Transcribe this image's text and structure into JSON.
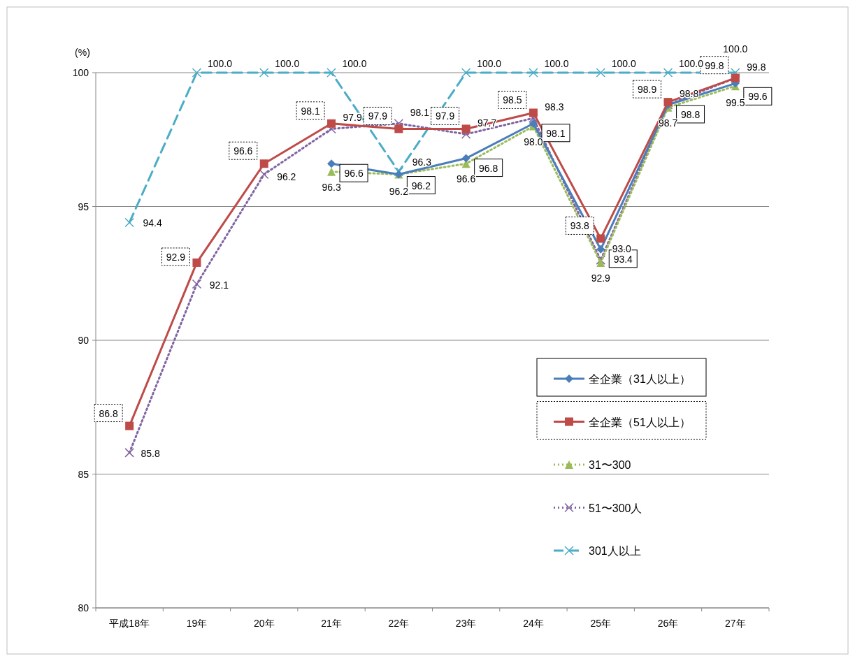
{
  "chart_data": {
    "type": "line",
    "ylabel": "(%)",
    "categories": [
      "平成18年",
      "19年",
      "20年",
      "21年",
      "22年",
      "23年",
      "24年",
      "25年",
      "26年",
      "27年"
    ],
    "ylim": [
      80,
      100
    ],
    "yticks": [
      80,
      85,
      90,
      95,
      100
    ],
    "grid": "y",
    "legend": "right",
    "series": [
      {
        "name": "全企業（31人以上）",
        "color": "#4a7ebb",
        "marker": "diamond",
        "line_style": "solid",
        "values": [
          null,
          null,
          null,
          96.6,
          96.2,
          96.8,
          98.1,
          93.4,
          98.8,
          99.6
        ],
        "value_labels": [
          null,
          null,
          null,
          "96.6",
          "96.2",
          "96.8",
          "98.1",
          "93.4",
          "98.8",
          "99.6"
        ]
      },
      {
        "name": "全企業（51人以上）",
        "color": "#be4b48",
        "marker": "square",
        "line_style": "solid",
        "values": [
          86.8,
          92.9,
          96.6,
          98.1,
          97.9,
          97.9,
          98.5,
          93.8,
          98.9,
          99.8
        ],
        "value_labels": [
          "86.8",
          "92.9",
          "96.6",
          "98.1",
          "97.9",
          "97.9",
          "98.5",
          "93.8",
          "98.9",
          "99.8"
        ]
      },
      {
        "name": "31〜300",
        "color": "#9bbb59",
        "marker": "triangle",
        "line_style": "dotted",
        "values": [
          null,
          null,
          null,
          96.3,
          96.2,
          96.6,
          98.0,
          92.9,
          98.7,
          99.5
        ],
        "value_labels": [
          null,
          null,
          null,
          "96.3",
          "96.2",
          "96.6",
          "98.0",
          "92.9",
          "98.7",
          "99.5"
        ]
      },
      {
        "name": "51〜300人",
        "color": "#8064a2",
        "marker": "cross",
        "line_style": "dotted",
        "values": [
          85.8,
          92.1,
          96.2,
          97.9,
          98.1,
          97.7,
          98.3,
          93.0,
          98.8,
          99.8
        ],
        "value_labels": [
          "85.8",
          "92.1",
          "96.2",
          "97.9",
          "98.1",
          "97.7",
          "98.3",
          "93.0",
          "98.8",
          "99.8"
        ]
      },
      {
        "name": "301人以上",
        "color": "#4bacc6",
        "marker": "cross",
        "line_style": "dashed",
        "values": [
          94.4,
          100,
          100,
          100,
          96.3,
          100,
          100,
          100,
          100,
          100
        ],
        "value_labels": [
          "94.4",
          "100.0",
          "100.0",
          "100.0",
          "96.3",
          "100.0",
          "100.0",
          "100.0",
          "100.0",
          "100.0"
        ]
      }
    ]
  }
}
